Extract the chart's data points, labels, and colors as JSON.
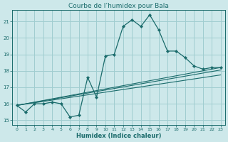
{
  "title": "Courbe de l’humidex pour Bala",
  "xlabel": "Humidex (Indice chaleur)",
  "xlim": [
    -0.5,
    23.5
  ],
  "ylim": [
    14.7,
    21.7
  ],
  "yticks": [
    15,
    16,
    17,
    18,
    19,
    20,
    21
  ],
  "xticks": [
    0,
    1,
    2,
    3,
    4,
    5,
    6,
    7,
    8,
    9,
    10,
    11,
    12,
    13,
    14,
    15,
    16,
    17,
    18,
    19,
    20,
    21,
    22,
    23
  ],
  "bg_color": "#cde8ea",
  "grid_color": "#a0cdd0",
  "line_color": "#1a6b6b",
  "main_x": [
    0,
    1,
    2,
    3,
    4,
    5,
    6,
    7,
    8,
    9,
    10,
    11,
    12,
    13,
    14,
    15,
    16,
    17,
    18,
    19,
    20,
    21,
    22,
    23
  ],
  "main_y": [
    15.9,
    15.5,
    16.0,
    16.0,
    16.1,
    16.0,
    15.2,
    15.3,
    17.6,
    16.4,
    18.9,
    19.0,
    20.7,
    21.1,
    20.7,
    21.4,
    20.5,
    19.2,
    19.2,
    18.8,
    18.3,
    18.1,
    18.2,
    18.2
  ],
  "straight_lines": [
    {
      "x": [
        0,
        23
      ],
      "y": [
        15.9,
        18.2
      ]
    },
    {
      "x": [
        0,
        23
      ],
      "y": [
        15.9,
        18.05
      ]
    },
    {
      "x": [
        0,
        23
      ],
      "y": [
        15.9,
        17.75
      ]
    }
  ]
}
